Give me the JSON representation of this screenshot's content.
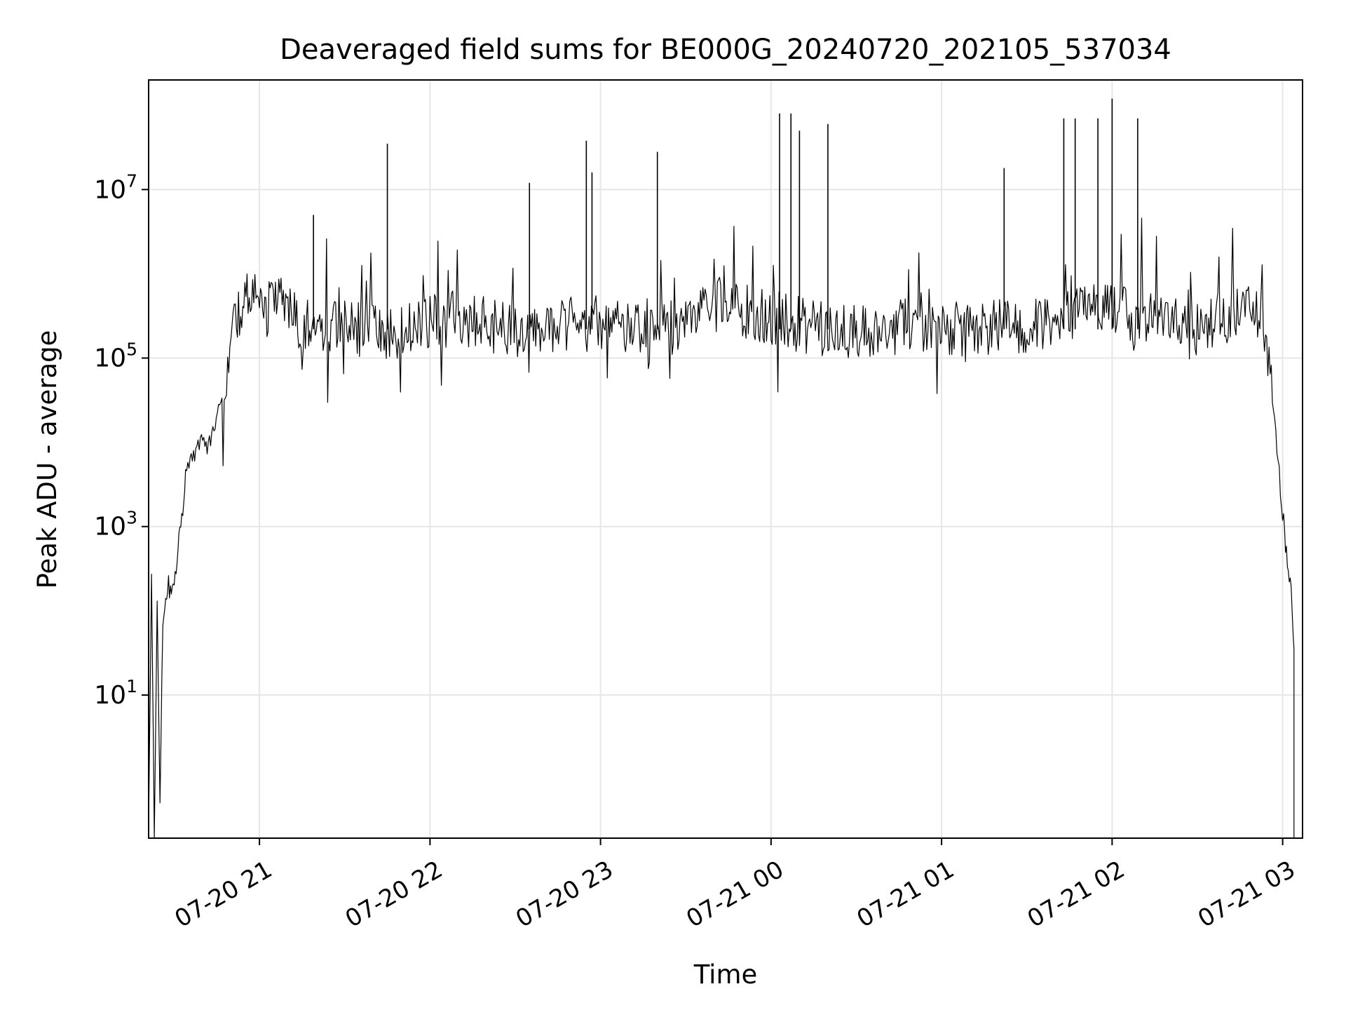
{
  "chart_data": {
    "type": "line",
    "title": "Deaveraged field sums for BE000G_20240720_202105_537034",
    "xlabel": "Time",
    "ylabel": "Peak ADU - average",
    "x_tick_labels": [
      "07-20 21",
      "07-20 22",
      "07-20 23",
      "07-21 00",
      "07-21 01",
      "07-21 02",
      "07-21 03"
    ],
    "x_ticks": [
      "2024-07-20 21:00",
      "2024-07-20 22:00",
      "2024-07-20 23:00",
      "2024-07-21 00:00",
      "2024-07-21 01:00",
      "2024-07-21 02:00",
      "2024-07-21 03:00"
    ],
    "xlim": [
      "2024-07-20 20:21",
      "2024-07-21 03:07"
    ],
    "y_scale": "log",
    "y_tick_labels": [
      {
        "base": "10",
        "exp": "1"
      },
      {
        "base": "10",
        "exp": "3"
      },
      {
        "base": "10",
        "exp": "5"
      },
      {
        "base": "10",
        "exp": "7"
      }
    ],
    "y_ticks": [
      10,
      1000,
      100000,
      10000000
    ],
    "ylim": [
      0.2,
      200000000
    ],
    "grid": true,
    "line_color": "#000000",
    "grid_color": "#e6e6e6",
    "series": [
      {
        "points": [
          [
            "2024-07-20 20:21",
            0.1
          ],
          [
            "2024-07-20 20:22",
            300
          ],
          [
            "2024-07-20 20:23",
            0.1
          ],
          [
            "2024-07-20 20:24",
            150
          ],
          [
            "2024-07-20 20:25",
            0.5
          ],
          [
            "2024-07-20 20:26",
            80
          ],
          [
            "2024-07-20 20:27",
            120
          ],
          [
            "2024-07-20 20:28",
            200
          ],
          [
            "2024-07-20 20:29",
            150
          ],
          [
            "2024-07-20 20:30",
            180
          ],
          [
            "2024-07-20 20:31",
            400
          ],
          [
            "2024-07-20 20:32",
            900
          ],
          [
            "2024-07-20 20:33",
            1500
          ],
          [
            "2024-07-20 20:34",
            4000
          ],
          [
            "2024-07-20 20:36",
            6000
          ],
          [
            "2024-07-20 20:38",
            8000
          ],
          [
            "2024-07-20 20:40",
            11000
          ],
          [
            "2024-07-20 20:42",
            9000
          ],
          [
            "2024-07-20 20:44",
            16000
          ],
          [
            "2024-07-20 20:46",
            25000
          ],
          [
            "2024-07-20 20:48",
            60000
          ],
          [
            "2024-07-20 20:50",
            200000
          ],
          [
            "2024-07-20 20:53",
            350000
          ],
          [
            "2024-07-20 20:56",
            500000
          ],
          [
            "2024-07-20 21:00",
            550000
          ],
          [
            "2024-07-20 21:03",
            350000
          ],
          [
            "2024-07-20 21:06",
            700000
          ],
          [
            "2024-07-20 21:10",
            400000
          ],
          [
            "2024-07-20 21:15",
            250000
          ],
          [
            "2024-07-20 21:20",
            200000
          ],
          [
            "2024-07-20 21:30",
            230000
          ],
          [
            "2024-07-20 21:40",
            250000
          ],
          [
            "2024-07-20 21:45",
            180000
          ],
          [
            "2024-07-20 21:50",
            220000
          ],
          [
            "2024-07-20 22:00",
            260000
          ],
          [
            "2024-07-20 22:10",
            300000
          ],
          [
            "2024-07-20 22:20",
            250000
          ],
          [
            "2024-07-20 22:30",
            200000
          ],
          [
            "2024-07-20 22:40",
            230000
          ],
          [
            "2024-07-20 22:50",
            250000
          ],
          [
            "2024-07-20 23:00",
            260000
          ],
          [
            "2024-07-20 23:10",
            250000
          ],
          [
            "2024-07-20 23:20",
            240000
          ],
          [
            "2024-07-20 23:30",
            230000
          ],
          [
            "2024-07-20 23:38",
            400000
          ],
          [
            "2024-07-20 23:45",
            450000
          ],
          [
            "2024-07-20 23:50",
            350000
          ],
          [
            "2024-07-21 00:00",
            300000
          ],
          [
            "2024-07-21 00:10",
            250000
          ],
          [
            "2024-07-21 00:20",
            220000
          ],
          [
            "2024-07-21 00:30",
            200000
          ],
          [
            "2024-07-21 00:40",
            210000
          ],
          [
            "2024-07-21 00:50",
            250000
          ],
          [
            "2024-07-21 01:00",
            230000
          ],
          [
            "2024-07-21 01:10",
            210000
          ],
          [
            "2024-07-21 01:20",
            230000
          ],
          [
            "2024-07-21 01:30",
            240000
          ],
          [
            "2024-07-21 01:40",
            300000
          ],
          [
            "2024-07-21 01:50",
            350000
          ],
          [
            "2024-07-21 02:00",
            350000
          ],
          [
            "2024-07-21 02:10",
            300000
          ],
          [
            "2024-07-21 02:20",
            250000
          ],
          [
            "2024-07-21 02:30",
            220000
          ],
          [
            "2024-07-21 02:40",
            300000
          ],
          [
            "2024-07-21 02:50",
            400000
          ],
          [
            "2024-07-21 02:52",
            350000
          ],
          [
            "2024-07-21 02:54",
            150000
          ],
          [
            "2024-07-21 02:56",
            40000
          ],
          [
            "2024-07-21 02:58",
            8000
          ],
          [
            "2024-07-21 03:00",
            1500
          ],
          [
            "2024-07-21 03:01",
            600
          ],
          [
            "2024-07-21 03:02",
            300
          ],
          [
            "2024-07-21 03:03",
            150
          ],
          [
            "2024-07-21 03:04",
            30
          ],
          [
            "2024-07-21 03:04",
            0.1
          ]
        ],
        "spikes": [
          [
            "2024-07-20 21:19",
            5000000
          ],
          [
            "2024-07-20 21:45",
            35000000
          ],
          [
            "2024-07-20 22:35",
            12000000
          ],
          [
            "2024-07-20 22:55",
            38000000
          ],
          [
            "2024-07-20 22:57",
            16000000
          ],
          [
            "2024-07-20 23:20",
            28000000
          ],
          [
            "2024-07-21 00:03",
            80000000
          ],
          [
            "2024-07-21 00:07",
            80000000
          ],
          [
            "2024-07-21 00:10",
            50000000
          ],
          [
            "2024-07-21 00:20",
            60000000
          ],
          [
            "2024-07-21 01:22",
            18000000
          ],
          [
            "2024-07-21 01:43",
            70000000
          ],
          [
            "2024-07-21 01:47",
            70000000
          ],
          [
            "2024-07-21 01:55",
            70000000
          ],
          [
            "2024-07-21 02:00",
            120000000
          ],
          [
            "2024-07-21 02:09",
            70000000
          ]
        ]
      }
    ]
  }
}
